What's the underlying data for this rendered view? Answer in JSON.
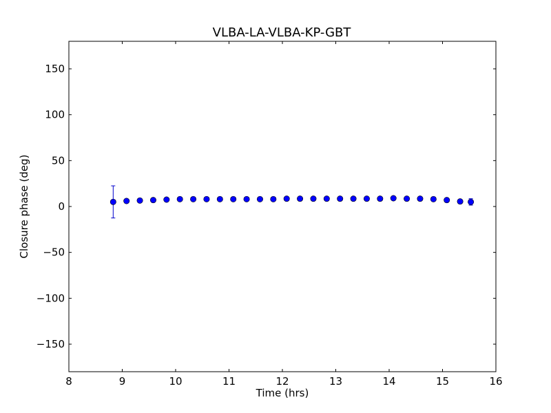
{
  "chart_data": {
    "type": "scatter",
    "title": "VLBA-LA-VLBA-KP-GBT",
    "xlabel": "Time (hrs)",
    "ylabel": "Closure phase (deg)",
    "xlim": [
      8,
      16
    ],
    "ylim": [
      -180,
      180
    ],
    "xticks": [
      8,
      9,
      10,
      11,
      12,
      13,
      14,
      15,
      16
    ],
    "xtick_labels": [
      "8",
      "9",
      "10",
      "11",
      "12",
      "13",
      "14",
      "15",
      "16"
    ],
    "yticks": [
      -150,
      -100,
      -50,
      0,
      50,
      100,
      150
    ],
    "ytick_labels": [
      "−150",
      "−100",
      "−50",
      "0",
      "50",
      "100",
      "150"
    ],
    "grid": false,
    "marker_color": "#0000ff",
    "errorbar_color": "#0000cc",
    "series": [
      {
        "x": [
          8.83,
          9.08,
          9.33,
          9.58,
          9.83,
          10.08,
          10.33,
          10.58,
          10.83,
          11.08,
          11.33,
          11.58,
          11.83,
          12.08,
          12.33,
          12.58,
          12.83,
          13.08,
          13.33,
          13.58,
          13.83,
          14.08,
          14.33,
          14.58,
          14.83,
          15.08,
          15.33,
          15.53
        ],
        "y": [
          5,
          6,
          6.5,
          7,
          7.5,
          8,
          8,
          8,
          8,
          8,
          8,
          8,
          8,
          8.5,
          8.5,
          8.5,
          8.5,
          8.5,
          8.5,
          8.5,
          8.5,
          9,
          8.5,
          8.5,
          8,
          7,
          5.5,
          5
        ],
        "err": [
          17.5,
          1,
          1,
          1,
          1,
          1,
          1,
          1,
          1,
          1,
          1,
          1,
          1,
          1,
          1,
          1,
          1,
          1,
          1,
          1,
          1,
          1,
          1,
          1,
          1,
          1,
          1,
          3.5
        ]
      }
    ]
  }
}
